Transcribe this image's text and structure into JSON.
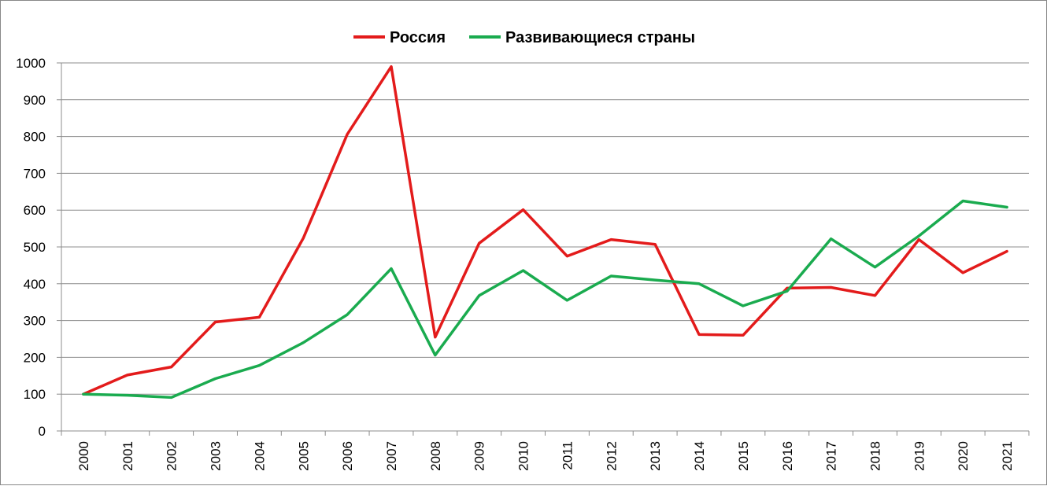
{
  "chart_data": {
    "type": "line",
    "title": "",
    "xlabel": "",
    "ylabel": "",
    "x": [
      "2000",
      "2001",
      "2002",
      "2003",
      "2004",
      "2005",
      "2006",
      "2007",
      "2008",
      "2009",
      "2010",
      "2011",
      "2012",
      "2013",
      "2014",
      "2015",
      "2016",
      "2017",
      "2018",
      "2019",
      "2020",
      "2021"
    ],
    "ylim": [
      0,
      1000
    ],
    "yticks": [
      "0",
      "100",
      "200",
      "300",
      "400",
      "500",
      "600",
      "700",
      "800",
      "900",
      "1000"
    ],
    "grid": true,
    "legend_position": "top-center",
    "series": [
      {
        "name": "Россия",
        "color": "#e31b1b",
        "values": [
          100,
          152,
          174,
          296,
          309,
          524,
          806,
          990,
          255,
          510,
          601,
          475,
          520,
          507,
          262,
          260,
          388,
          390,
          368,
          520,
          430,
          488
        ]
      },
      {
        "name": "Развивающиеся страны",
        "color": "#1aab4f",
        "values": [
          100,
          97,
          91,
          142,
          178,
          240,
          316,
          441,
          206,
          368,
          436,
          355,
          421,
          410,
          400,
          340,
          380,
          522,
          445,
          530,
          625,
          608
        ]
      }
    ]
  }
}
